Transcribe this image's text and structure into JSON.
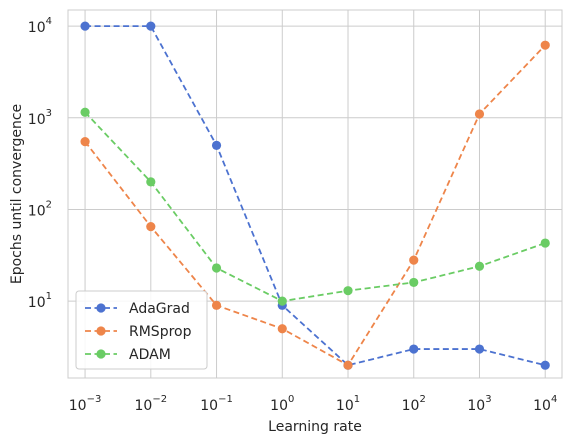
{
  "chart_data": {
    "type": "line",
    "title": "",
    "xlabel": "Learning rate",
    "ylabel": "Epochs until convergence",
    "x_scale": "log",
    "y_scale": "log",
    "x": [
      0.001,
      0.01,
      0.1,
      1,
      10,
      100,
      1000,
      10000
    ],
    "x_tick_labels": [
      {
        "base": "10",
        "exp": "−3"
      },
      {
        "base": "10",
        "exp": "−2"
      },
      {
        "base": "10",
        "exp": "−1"
      },
      {
        "base": "10",
        "exp": "0"
      },
      {
        "base": "10",
        "exp": "1"
      },
      {
        "base": "10",
        "exp": "2"
      },
      {
        "base": "10",
        "exp": "3"
      },
      {
        "base": "10",
        "exp": "4"
      }
    ],
    "y_ticks": [
      10,
      100,
      1000,
      10000
    ],
    "y_tick_labels": [
      {
        "base": "10",
        "exp": "1"
      },
      {
        "base": "10",
        "exp": "2"
      },
      {
        "base": "10",
        "exp": "3"
      },
      {
        "base": "10",
        "exp": "4"
      }
    ],
    "xlim": [
      0.00055,
      18000
    ],
    "ylim": [
      1.45,
      15000
    ],
    "grid": true,
    "legend_position": "lower-left",
    "series": [
      {
        "name": "AdaGrad",
        "color": "#4c72d0",
        "style": "dashed",
        "marker": "circle",
        "values": [
          10000,
          10000,
          500,
          9,
          2,
          3,
          3,
          2
        ]
      },
      {
        "name": "RMSprop",
        "color": "#ee854a",
        "style": "dashed",
        "marker": "circle",
        "values": [
          550,
          65,
          9,
          5,
          2,
          28,
          1100,
          6200
        ]
      },
      {
        "name": "ADAM",
        "color": "#6acc64",
        "style": "dashed",
        "marker": "circle",
        "values": [
          1150,
          200,
          23,
          10,
          13,
          16,
          24,
          43
        ]
      }
    ]
  }
}
